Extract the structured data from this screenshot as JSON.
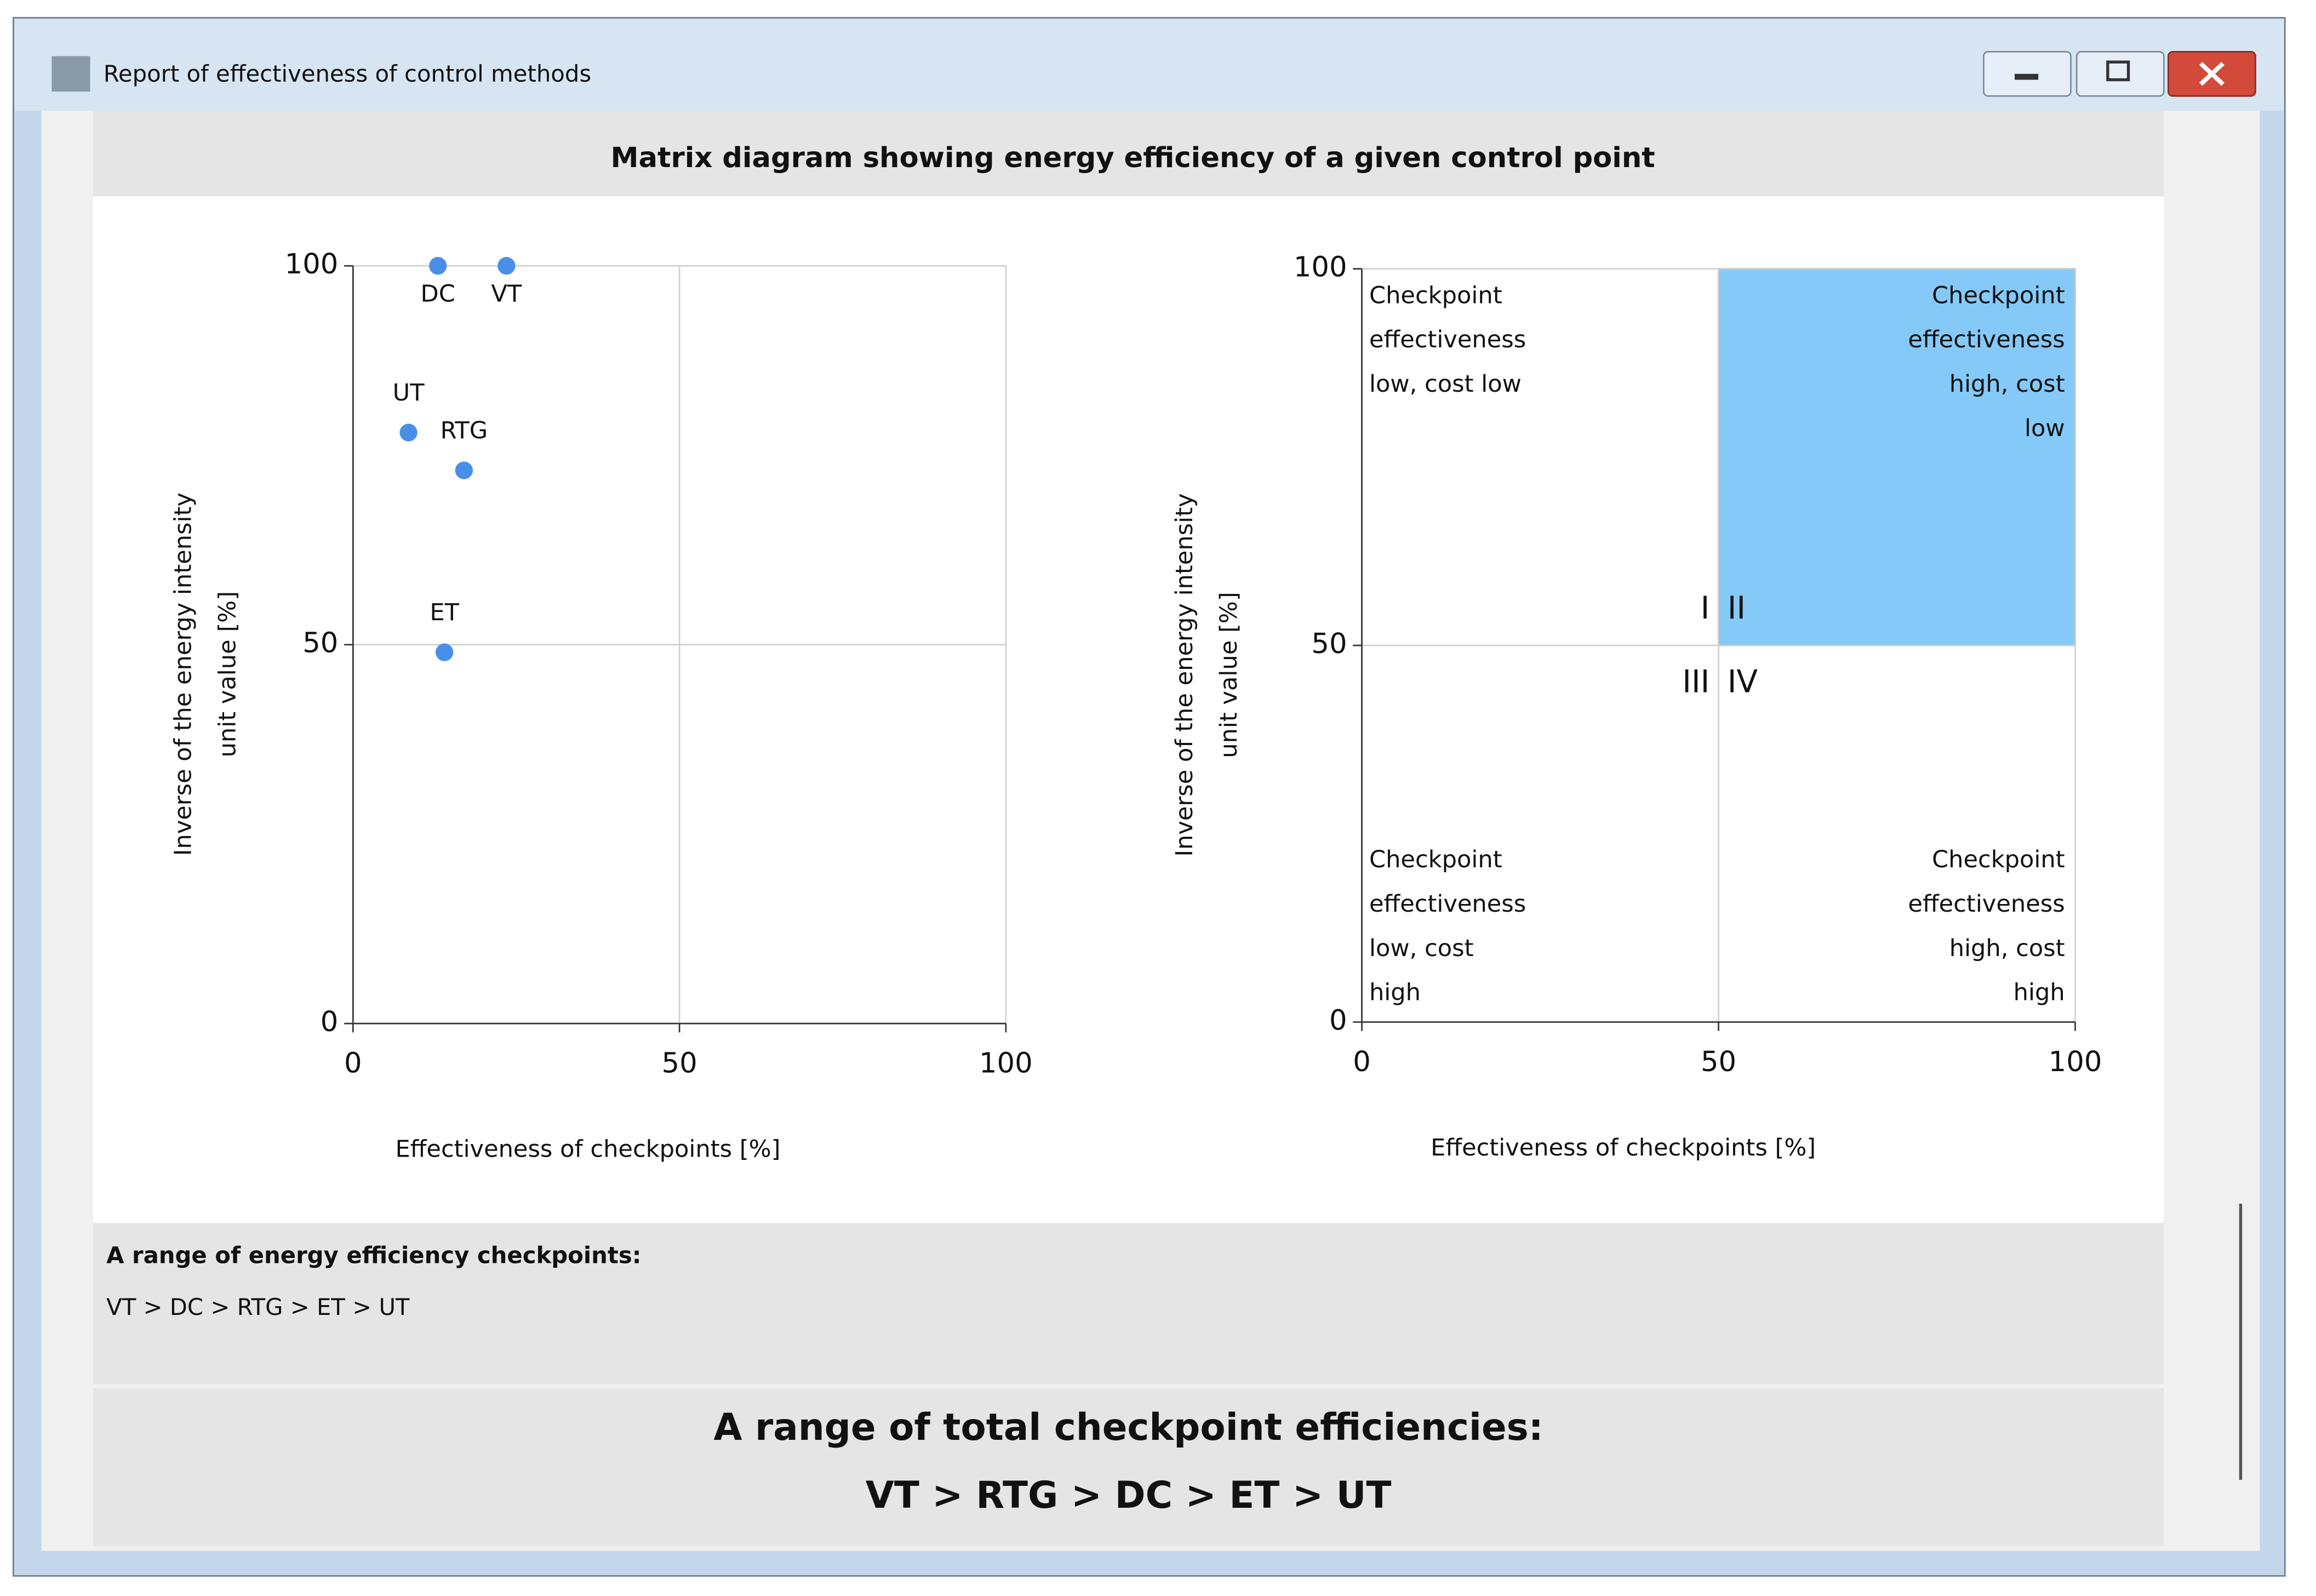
{
  "window": {
    "title": "Report of effectiveness of control methods"
  },
  "header": {
    "title": "Matrix diagram showing energy efficiency of a given control point"
  },
  "chart_data": [
    {
      "type": "scatter",
      "xlabel": "Effectiveness of checkpoints [%]",
      "ylabel": [
        "Inverse of the energy intensity",
        "unit value [%]"
      ],
      "xlim": [
        0,
        100
      ],
      "ylim": [
        0,
        100
      ],
      "xticks": [
        0,
        50,
        100
      ],
      "yticks": [
        0,
        50,
        100
      ],
      "grid": true,
      "color": "#4a8fe7",
      "points": [
        {
          "name": "DC",
          "x": 13,
          "y": 100
        },
        {
          "name": "VT",
          "x": 23.5,
          "y": 100
        },
        {
          "name": "UT",
          "x": 8.5,
          "y": 78
        },
        {
          "name": "RTG",
          "x": 17,
          "y": 73
        },
        {
          "name": "ET",
          "x": 14,
          "y": 49
        }
      ]
    },
    {
      "type": "matrix",
      "xlabel": "Effectiveness of checkpoints [%]",
      "ylabel": [
        "Inverse of the energy intensity",
        "unit value [%]"
      ],
      "xlim": [
        0,
        100
      ],
      "ylim": [
        0,
        100
      ],
      "xticks": [
        0,
        50,
        100
      ],
      "yticks": [
        0,
        50,
        100
      ],
      "grid": true,
      "highlight": {
        "x": [
          50,
          100
        ],
        "y": [
          50,
          100
        ],
        "color": "#84c9f8"
      },
      "numerals": [
        "I",
        "II",
        "III",
        "IV"
      ],
      "quadrants": [
        {
          "corner": "top-left",
          "lines": [
            "Checkpoint",
            "effectiveness",
            "low, cost low"
          ]
        },
        {
          "corner": "top-right",
          "lines": [
            "Checkpoint",
            "effectiveness",
            "high, cost",
            "low"
          ]
        },
        {
          "corner": "bottom-left",
          "lines": [
            "Checkpoint",
            "effectiveness",
            "low, cost",
            "high"
          ]
        },
        {
          "corner": "bottom-right",
          "lines": [
            "Checkpoint",
            "effectiveness",
            "high, cost",
            "high"
          ]
        }
      ]
    }
  ],
  "footer": {
    "title": "A range of energy efficiency checkpoints:",
    "ranking": "VT > DC > RTG > ET > UT"
  },
  "summary": {
    "title": "A range of total checkpoint efficiencies:",
    "ranking": "VT > RTG > DC > ET > UT"
  }
}
